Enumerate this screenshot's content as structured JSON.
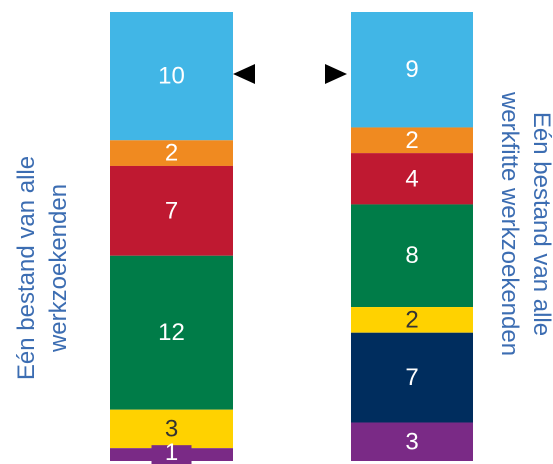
{
  "chart_data": {
    "type": "bar",
    "stacked": true,
    "series": [
      {
        "label_lines": [
          "Eén bestand van alle",
          "werkzoekenden"
        ],
        "label_color": "#3c6db2",
        "segments": [
          {
            "value": 10,
            "label": "10",
            "color": "#41b6e6",
            "text_color": "#ffffff"
          },
          {
            "value": 2,
            "label": "2",
            "color": "#f08a20",
            "text_color": "#ffffff"
          },
          {
            "value": 7,
            "label": "7",
            "color": "#bf1931",
            "text_color": "#ffffff"
          },
          {
            "value": 12,
            "label": "12",
            "color": "#007c48",
            "text_color": "#ffffff"
          },
          {
            "value": 3,
            "label": "3",
            "color": "#ffd200",
            "text_color": "#333333"
          },
          {
            "value": 1,
            "label": "1",
            "color": "#7a2a86",
            "text_color": "#ffffff"
          }
        ]
      },
      {
        "label_lines": [
          "Eén bestand van alle",
          "werkfitte werkzoekenden"
        ],
        "label_color": "#3c6db2",
        "segments": [
          {
            "value": 9,
            "label": "9",
            "color": "#41b6e6",
            "text_color": "#ffffff"
          },
          {
            "value": 2,
            "label": "2",
            "color": "#f08a20",
            "text_color": "#ffffff"
          },
          {
            "value": 4,
            "label": "4",
            "color": "#bf1931",
            "text_color": "#ffffff"
          },
          {
            "value": 8,
            "label": "8",
            "color": "#007c48",
            "text_color": "#ffffff"
          },
          {
            "value": 2,
            "label": "2",
            "color": "#ffd200",
            "text_color": "#333333"
          },
          {
            "value": 7,
            "label": "7",
            "color": "#002d5e",
            "text_color": "#ffffff"
          },
          {
            "value": 3,
            "label": "3",
            "color": "#7a2a86",
            "text_color": "#ffffff"
          }
        ]
      }
    ],
    "marker_color": "#000000"
  }
}
